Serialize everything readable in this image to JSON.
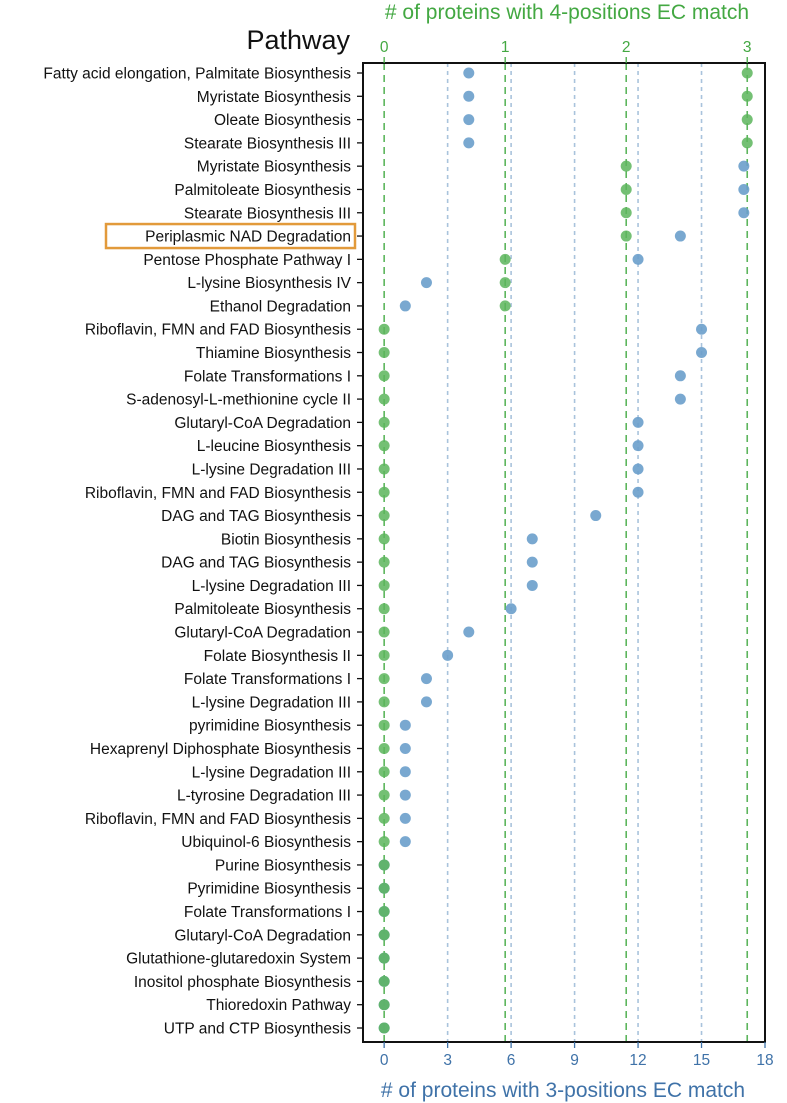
{
  "chart_data": {
    "type": "scatter",
    "title": "Pathway",
    "xlabel_bottom": "# of proteins with 3-positions EC match",
    "xlabel_top": "# of proteins with 4-positions EC match",
    "x_bottom_range": [
      -1,
      18
    ],
    "x_bottom_ticks": [
      0,
      3,
      6,
      9,
      12,
      15,
      18
    ],
    "x_top_ticks": [
      0,
      1,
      2,
      3
    ],
    "top_to_bottom_scale": 5.72,
    "highlighted_category": "Periplasmic NAD Degradation",
    "categories": [
      "Fatty acid elongation, Palmitate Biosynthesis",
      "Myristate Biosynthesis",
      "Oleate Biosynthesis",
      "Stearate Biosynthesis III",
      "Myristate Biosynthesis",
      "Palmitoleate Biosynthesis",
      "Stearate Biosynthesis III",
      "Periplasmic NAD Degradation",
      "Pentose Phosphate Pathway I",
      "L-lysine Biosynthesis IV",
      "Ethanol Degradation",
      "Riboflavin, FMN and FAD Biosynthesis",
      "Thiamine Biosynthesis",
      "Folate Transformations I",
      "S-adenosyl-L-methionine cycle II",
      "Glutaryl-CoA Degradation",
      "L-leucine Biosynthesis",
      "L-lysine Degradation III",
      "Riboflavin, FMN and FAD Biosynthesis",
      "DAG and TAG Biosynthesis",
      "Biotin Biosynthesis",
      "DAG and TAG Biosynthesis",
      "L-lysine Degradation III",
      "Palmitoleate Biosynthesis",
      "Glutaryl-CoA Degradation",
      "Folate Biosynthesis II",
      "Folate Transformations I",
      "L-lysine Degradation III",
      "pyrimidine Biosynthesis",
      "Hexaprenyl Diphosphate Biosynthesis",
      "L-lysine Degradation III",
      "L-tyrosine Degradation III",
      "Riboflavin, FMN and FAD Biosynthesis",
      "Ubiquinol-6 Biosynthesis",
      "Purine Biosynthesis",
      "Pyrimidine Biosynthesis",
      "Folate Transformations I",
      "Glutaryl-CoA Degradation",
      "Glutathione-glutaredoxin System",
      "Inositol phosphate Biosynthesis",
      "Thioredoxin Pathway",
      "UTP and CTP  Biosynthesis"
    ],
    "series": [
      {
        "name": "# of proteins with 3-positions EC match",
        "axis": "bottom",
        "color": "#6a9fcb",
        "values": [
          4,
          4,
          4,
          4,
          17,
          17,
          17,
          14,
          12,
          2,
          1,
          15,
          15,
          14,
          14,
          12,
          12,
          12,
          12,
          10,
          7,
          7,
          7,
          6,
          4,
          3,
          2,
          2,
          1,
          1,
          1,
          1,
          1,
          1,
          0,
          0,
          0,
          0,
          0,
          0,
          0,
          0
        ]
      },
      {
        "name": "# of proteins with 4-positions EC match",
        "axis": "top",
        "color": "#5cb55c",
        "values": [
          3,
          3,
          3,
          3,
          2,
          2,
          2,
          2,
          1,
          1,
          1,
          0,
          0,
          0,
          0,
          0,
          0,
          0,
          0,
          0,
          0,
          0,
          0,
          0,
          0,
          0,
          0,
          0,
          0,
          0,
          0,
          0,
          0,
          0,
          0,
          0,
          0,
          0,
          0,
          0,
          0,
          0
        ]
      }
    ],
    "colors": {
      "top_axis": "#43a842",
      "bottom_axis": "#3f72a8",
      "top_gridline": "#5cb55c",
      "bottom_gridline": "#a9c3dc",
      "highlight_box": "#e29a3b"
    }
  }
}
